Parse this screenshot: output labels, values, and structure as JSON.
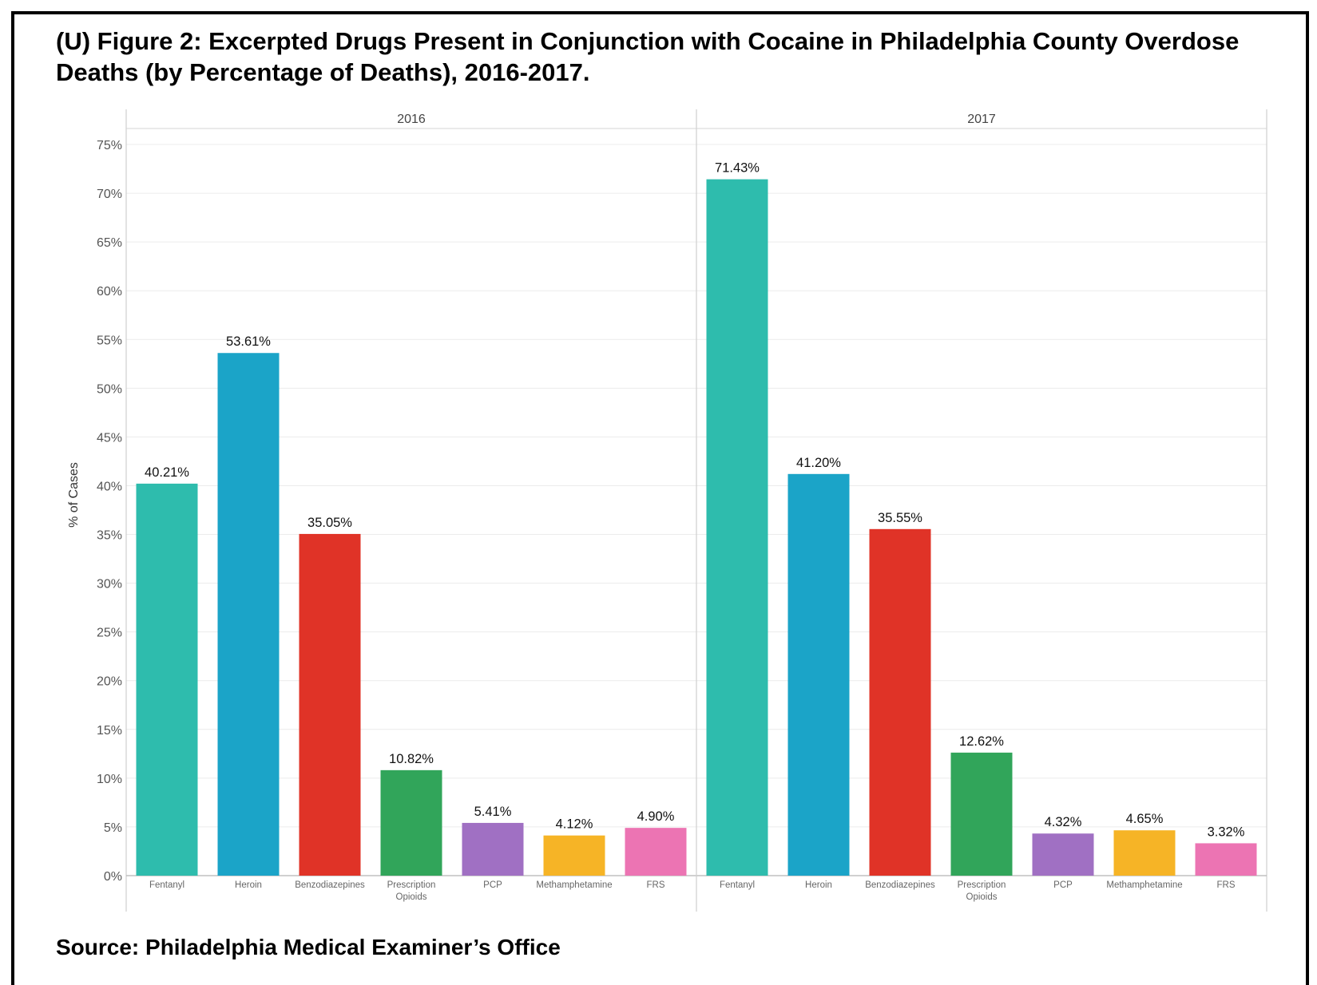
{
  "title": "(U) Figure 2: Excerpted Drugs Present in Conjunction with Cocaine in Philadelphia County Overdose Deaths (by Percentage of Deaths), 2016-2017.",
  "source": "Source: Philadelphia Medical Examiner’s Office",
  "chart_data": {
    "type": "bar",
    "ylabel": "% of Cases",
    "ylim": [
      0,
      75
    ],
    "ytick_step": 5,
    "ytick_labels": [
      "0%",
      "5%",
      "10%",
      "15%",
      "20%",
      "25%",
      "30%",
      "35%",
      "40%",
      "45%",
      "50%",
      "55%",
      "60%",
      "65%",
      "70%",
      "75%"
    ],
    "grid": true,
    "categories": [
      "Fentanyl",
      "Heroin",
      "Benzodiazepines",
      "Prescription Opioids",
      "PCP",
      "Methamphetamine",
      "FRS"
    ],
    "category_colors": [
      "#2ebcad",
      "#1ba4c8",
      "#e03327",
      "#31a55a",
      "#a070c3",
      "#f6b426",
      "#ec74b3"
    ],
    "panels": [
      {
        "name": "2016",
        "values": [
          40.21,
          53.61,
          35.05,
          10.82,
          5.41,
          4.12,
          4.9
        ],
        "value_labels": [
          "40.21%",
          "53.61%",
          "35.05%",
          "10.82%",
          "5.41%",
          "4.12%",
          "4.90%"
        ]
      },
      {
        "name": "2017",
        "values": [
          71.43,
          41.2,
          35.55,
          12.62,
          4.32,
          4.65,
          3.32
        ],
        "value_labels": [
          "71.43%",
          "41.20%",
          "35.55%",
          "12.62%",
          "4.32%",
          "4.65%",
          "3.32%"
        ]
      }
    ]
  }
}
